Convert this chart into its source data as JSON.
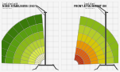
{
  "title_left_line1": "Load chart with",
  "title_left_line2": "NDED STABILISERS (360°)",
  "title_left_sub": "ATT-03-004",
  "title_right_line1": "Load chart",
  "title_right_line2": "FRONT ATTACHMENT ON",
  "title_right_sub": "ATT-03-004",
  "bg_color": "#f5f5f5",
  "grid_color": "#bbbbbb",
  "left_colors": [
    "#f0f0c0",
    "#d8e84a",
    "#b4d030",
    "#8ab818",
    "#5a9e10",
    "#3a7a0a"
  ],
  "right_colors": [
    "#c82800",
    "#e06010",
    "#e89800",
    "#d4c808",
    "#b4cc28",
    "#8ab818",
    "#5a9e10"
  ],
  "text_color": "#222222",
  "crane_color": "#444444"
}
